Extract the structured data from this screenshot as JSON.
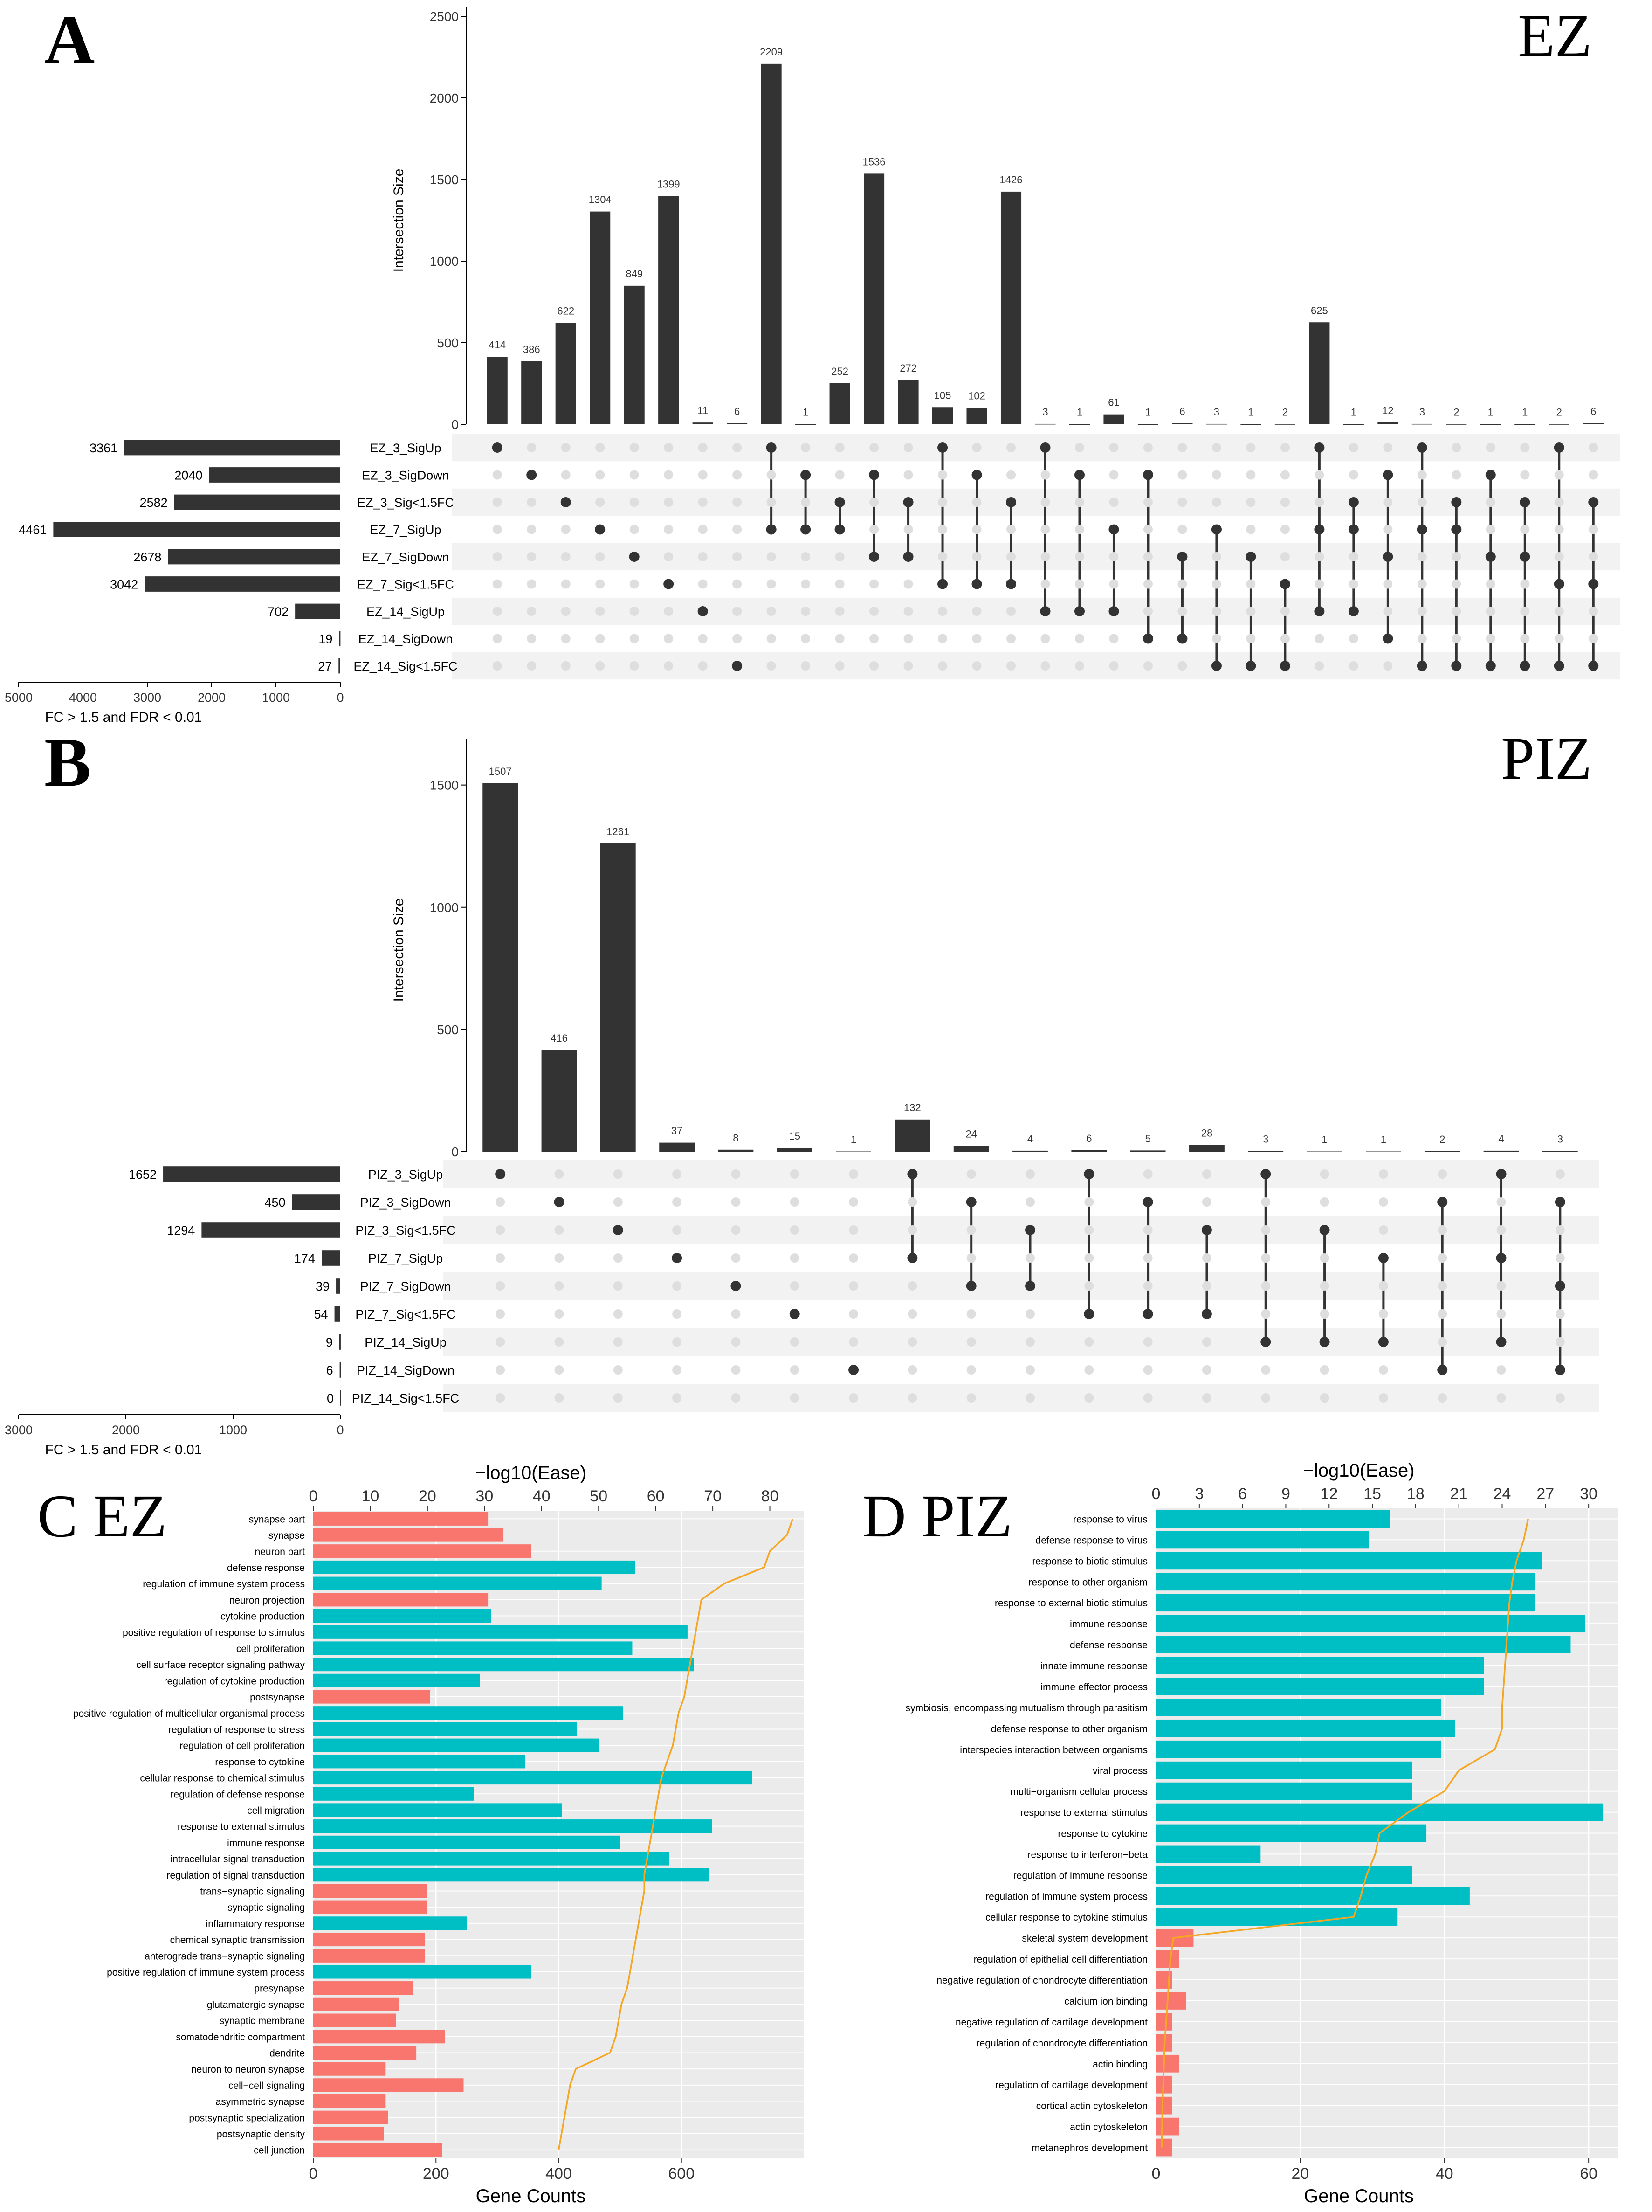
{
  "panels": {
    "A": {
      "letter": "A",
      "title": "EZ"
    },
    "B": {
      "letter": "B",
      "title": "PIZ"
    },
    "C": {
      "title": "C EZ"
    },
    "D": {
      "title": "D PIZ"
    }
  },
  "colors": {
    "bar": "#333333",
    "dot_on": "#333333",
    "dot_off": "#dedede",
    "stripe": "#f2f2f2",
    "go_bp": "#00bfc4",
    "go_cc": "#f8766d",
    "ease_line": "#f5a623",
    "panel_bg": "#ebebeb"
  },
  "chart_data": [
    {
      "type": "upset",
      "panel": "A",
      "ylabel": "Intersection Size",
      "ylim": [
        0,
        2500
      ],
      "yticks": [
        0,
        500,
        1000,
        1500,
        2000,
        2500
      ],
      "set_axis_label": "FC > 1.5 and FDR < 0.01",
      "set_axis_ticks": [
        5000,
        4000,
        3000,
        2000,
        1000,
        0
      ],
      "set_axis_max": 5000,
      "sets": [
        {
          "name": "EZ_3_SigUp",
          "size": 3361
        },
        {
          "name": "EZ_3_SigDown",
          "size": 2040
        },
        {
          "name": "EZ_3_Sig<1.5FC",
          "size": 2582
        },
        {
          "name": "EZ_7_SigUp",
          "size": 4461
        },
        {
          "name": "EZ_7_SigDown",
          "size": 2678
        },
        {
          "name": "EZ_7_Sig<1.5FC",
          "size": 3042
        },
        {
          "name": "EZ_14_SigUp",
          "size": 702
        },
        {
          "name": "EZ_14_SigDown",
          "size": 19
        },
        {
          "name": "EZ_14_Sig<1.5FC",
          "size": 27
        }
      ],
      "intersections": [
        {
          "size": 414,
          "members": [
            0
          ]
        },
        {
          "size": 386,
          "members": [
            1
          ]
        },
        {
          "size": 622,
          "members": [
            2
          ]
        },
        {
          "size": 1304,
          "members": [
            3
          ]
        },
        {
          "size": 849,
          "members": [
            4
          ]
        },
        {
          "size": 1399,
          "members": [
            5
          ]
        },
        {
          "size": 11,
          "members": [
            6
          ]
        },
        {
          "size": 6,
          "members": [
            8
          ]
        },
        {
          "size": 2209,
          "members": [
            0,
            3
          ]
        },
        {
          "size": 1,
          "members": [
            1,
            3
          ]
        },
        {
          "size": 252,
          "members": [
            2,
            3
          ]
        },
        {
          "size": 1536,
          "members": [
            1,
            4
          ]
        },
        {
          "size": 272,
          "members": [
            2,
            4
          ]
        },
        {
          "size": 105,
          "members": [
            0,
            5
          ]
        },
        {
          "size": 102,
          "members": [
            1,
            5
          ]
        },
        {
          "size": 1426,
          "members": [
            2,
            5
          ]
        },
        {
          "size": 3,
          "members": [
            0,
            6
          ]
        },
        {
          "size": 1,
          "members": [
            1,
            6
          ]
        },
        {
          "size": 61,
          "members": [
            3,
            6
          ]
        },
        {
          "size": 1,
          "members": [
            1,
            7
          ]
        },
        {
          "size": 6,
          "members": [
            4,
            7
          ]
        },
        {
          "size": 3,
          "members": [
            3,
            8
          ]
        },
        {
          "size": 1,
          "members": [
            4,
            8
          ]
        },
        {
          "size": 2,
          "members": [
            5,
            8
          ]
        },
        {
          "size": 625,
          "members": [
            0,
            3,
            6
          ]
        },
        {
          "size": 1,
          "members": [
            2,
            3,
            6
          ]
        },
        {
          "size": 12,
          "members": [
            1,
            4,
            7
          ]
        },
        {
          "size": 3,
          "members": [
            0,
            3,
            8
          ]
        },
        {
          "size": 2,
          "members": [
            2,
            3,
            8
          ]
        },
        {
          "size": 1,
          "members": [
            1,
            4,
            8
          ]
        },
        {
          "size": 1,
          "members": [
            2,
            4,
            8
          ]
        },
        {
          "size": 2,
          "members": [
            0,
            5,
            8
          ]
        },
        {
          "size": 6,
          "members": [
            2,
            5,
            8
          ]
        }
      ]
    },
    {
      "type": "upset",
      "panel": "B",
      "ylabel": "Intersection Size",
      "ylim": [
        0,
        1650
      ],
      "yticks": [
        0,
        500,
        1000,
        1500
      ],
      "set_axis_label": "FC > 1.5 and FDR < 0.01",
      "set_axis_ticks": [
        3000,
        2000,
        1000,
        0
      ],
      "set_axis_max": 3000,
      "sets": [
        {
          "name": "PIZ_3_SigUp",
          "size": 1652
        },
        {
          "name": "PIZ_3_SigDown",
          "size": 450
        },
        {
          "name": "PIZ_3_Sig<1.5FC",
          "size": 1294
        },
        {
          "name": "PIZ_7_SigUp",
          "size": 174
        },
        {
          "name": "PIZ_7_SigDown",
          "size": 39
        },
        {
          "name": "PIZ_7_Sig<1.5FC",
          "size": 54
        },
        {
          "name": "PIZ_14_SigUp",
          "size": 9
        },
        {
          "name": "PIZ_14_SigDown",
          "size": 6
        },
        {
          "name": "PIZ_14_Sig<1.5FC",
          "size": 0
        }
      ],
      "intersections": [
        {
          "size": 1507,
          "members": [
            0
          ]
        },
        {
          "size": 416,
          "members": [
            1
          ]
        },
        {
          "size": 1261,
          "members": [
            2
          ]
        },
        {
          "size": 37,
          "members": [
            3
          ]
        },
        {
          "size": 8,
          "members": [
            4
          ]
        },
        {
          "size": 15,
          "members": [
            5
          ]
        },
        {
          "size": 1,
          "members": [
            7
          ]
        },
        {
          "size": 132,
          "members": [
            0,
            3
          ]
        },
        {
          "size": 24,
          "members": [
            1,
            4
          ]
        },
        {
          "size": 4,
          "members": [
            2,
            4
          ]
        },
        {
          "size": 6,
          "members": [
            0,
            5
          ]
        },
        {
          "size": 5,
          "members": [
            1,
            5
          ]
        },
        {
          "size": 28,
          "members": [
            2,
            5
          ]
        },
        {
          "size": 3,
          "members": [
            0,
            6
          ]
        },
        {
          "size": 1,
          "members": [
            2,
            6
          ]
        },
        {
          "size": 1,
          "members": [
            3,
            6
          ]
        },
        {
          "size": 2,
          "members": [
            1,
            7
          ]
        },
        {
          "size": 4,
          "members": [
            0,
            3,
            6
          ]
        },
        {
          "size": 3,
          "members": [
            1,
            4,
            7
          ]
        }
      ]
    },
    {
      "type": "bar_with_line",
      "panel": "C",
      "orientation": "horizontal",
      "xlabel": "Gene Counts",
      "xlim": [
        0,
        800
      ],
      "xticks": [
        0,
        200,
        400,
        600
      ],
      "top_xlabel": "−log10(Ease)",
      "top_xlim": [
        0,
        86
      ],
      "top_xticks": [
        0,
        10,
        20,
        30,
        40,
        50,
        60,
        70,
        80
      ],
      "categories": [
        "synapse part",
        "synapse",
        "neuron part",
        "defense response",
        "regulation of immune system process",
        "neuron projection",
        "cytokine production",
        "positive regulation of response to stimulus",
        "cell proliferation",
        "cell surface receptor signaling pathway",
        "regulation of cytokine production",
        "postsynapse",
        "positive regulation of multicellular organismal process",
        "regulation of response to stress",
        "regulation of cell proliferation",
        "response to cytokine",
        "cellular response to chemical stimulus",
        "regulation of defense response",
        "cell migration",
        "response to external stimulus",
        "immune response",
        "intracellular signal transduction",
        "regulation of signal transduction",
        "trans−synaptic signaling",
        "synaptic signaling",
        "inflammatory response",
        "chemical synaptic transmission",
        "anterograde trans−synaptic signaling",
        "positive regulation of immune system process",
        "presynapse",
        "glutamatergic synapse",
        "synaptic membrane",
        "somatodendritic compartment",
        "dendrite",
        "neuron to neuron synapse",
        "cell−cell signaling",
        "asymmetric synapse",
        "postsynaptic specialization",
        "postsynaptic density",
        "cell junction"
      ],
      "values": [
        285,
        310,
        355,
        525,
        470,
        285,
        290,
        610,
        520,
        620,
        272,
        190,
        505,
        430,
        465,
        345,
        715,
        262,
        405,
        650,
        500,
        580,
        645,
        185,
        185,
        250,
        182,
        182,
        355,
        162,
        140,
        135,
        215,
        168,
        118,
        245,
        118,
        122,
        115,
        210
      ],
      "groups": [
        "cc",
        "cc",
        "cc",
        "bp",
        "bp",
        "cc",
        "bp",
        "bp",
        "bp",
        "bp",
        "bp",
        "cc",
        "bp",
        "bp",
        "bp",
        "bp",
        "bp",
        "bp",
        "bp",
        "bp",
        "bp",
        "bp",
        "bp",
        "cc",
        "cc",
        "bp",
        "cc",
        "cc",
        "bp",
        "cc",
        "cc",
        "cc",
        "cc",
        "cc",
        "cc",
        "cc",
        "cc",
        "cc",
        "cc",
        "cc"
      ],
      "ease": [
        84,
        83,
        80,
        79,
        72,
        68,
        67.5,
        67,
        66.5,
        66,
        65.5,
        65,
        64,
        63.5,
        63,
        62,
        61,
        60.5,
        60,
        59.5,
        59,
        58.5,
        58,
        58,
        57.5,
        57,
        56.5,
        56,
        55.5,
        55,
        54,
        53.5,
        53,
        52,
        46,
        45,
        44.5,
        44,
        43.5,
        43
      ]
    },
    {
      "type": "bar_with_line",
      "panel": "D",
      "orientation": "horizontal",
      "xlabel": "Gene Counts",
      "xlim": [
        0,
        64
      ],
      "xticks": [
        0,
        20,
        40,
        60
      ],
      "top_xlabel": "−log10(Ease)",
      "top_xlim": [
        0,
        32
      ],
      "top_xticks": [
        0,
        3,
        6,
        9,
        12,
        15,
        18,
        21,
        24,
        27,
        30
      ],
      "categories": [
        "response to virus",
        "defense response to virus",
        "response to biotic stimulus",
        "response to other organism",
        "response to external biotic stimulus",
        "immune response",
        "defense response",
        "innate immune response",
        "immune effector process",
        "symbiosis, encompassing mutualism through parasitism",
        "defense response to other organism",
        "interspecies interaction between organisms",
        "viral process",
        "multi−organism cellular process",
        "response to external stimulus",
        "response to cytokine",
        "response to interferon−beta",
        "regulation of immune response",
        "regulation of immune system process",
        "cellular response to cytokine stimulus",
        "skeletal system development",
        "regulation of epithelial cell differentiation",
        "negative regulation of chondrocyte differentiation",
        "calcium ion binding",
        "negative regulation of cartilage development",
        "regulation of chondrocyte differentiation",
        "actin binding",
        "regulation of cartilage development",
        "cortical actin cytoskeleton",
        "actin cytoskeleton",
        "metanephros development"
      ],
      "values": [
        32.5,
        29.5,
        53.5,
        52.5,
        52.5,
        59.5,
        57.5,
        45.5,
        45.5,
        39.5,
        41.5,
        39.5,
        35.5,
        35.5,
        62,
        37.5,
        14.5,
        35.5,
        43.5,
        33.5,
        5.2,
        3.2,
        2.2,
        4.2,
        2.2,
        2.2,
        3.2,
        2.2,
        2.2,
        3.2,
        2.2
      ],
      "groups": [
        "bp",
        "bp",
        "bp",
        "bp",
        "bp",
        "bp",
        "bp",
        "bp",
        "bp",
        "bp",
        "bp",
        "bp",
        "bp",
        "bp",
        "bp",
        "bp",
        "bp",
        "bp",
        "bp",
        "bp",
        "cc",
        "cc",
        "cc",
        "cc",
        "cc",
        "cc",
        "cc",
        "cc",
        "cc",
        "cc",
        "cc"
      ],
      "ease": [
        25.8,
        25.5,
        25,
        24.7,
        24.5,
        24.4,
        24.3,
        24.2,
        24.1,
        24,
        24,
        23.5,
        21,
        20,
        17.5,
        15.5,
        15.2,
        14.6,
        14.2,
        13.7,
        1.2,
        1.0,
        0.9,
        0.8,
        0.7,
        0.6,
        0.55,
        0.5,
        0.45,
        0.42,
        0.4
      ]
    }
  ]
}
